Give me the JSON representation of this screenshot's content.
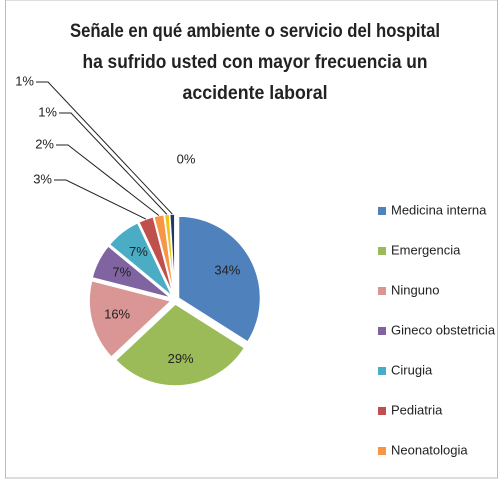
{
  "chart_data": {
    "type": "pie",
    "title": [
      "Señale en qué ambiente o servicio del hospital",
      "ha sufrido usted con mayor frecuencia un",
      "accidente laboral"
    ],
    "categories": [
      "Medicina interna",
      "Emergencia",
      "Ninguno",
      "Gineco obstetricia",
      "Cirugia",
      "Pediatria",
      "Neonatologia",
      null,
      null,
      null
    ],
    "values": [
      34,
      29,
      16,
      7,
      7,
      3,
      2,
      1,
      1,
      0
    ],
    "value_labels": [
      "34%",
      "29%",
      "16%",
      "7%",
      "7%",
      "3%",
      "2%",
      "1%",
      "1%",
      "0%"
    ],
    "colors": [
      "#4f81bd",
      "#9bbb59",
      "#d99694",
      "#8064a2",
      "#4bacc6",
      "#c0504d",
      "#f79646",
      "#f2c314",
      "#1f3864",
      "#7f7f7f"
    ],
    "legend": "right"
  }
}
